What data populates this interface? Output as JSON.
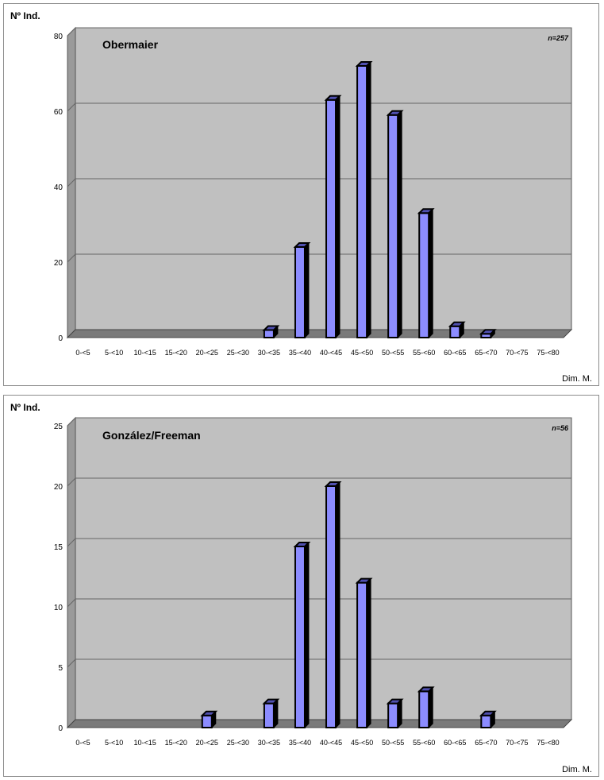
{
  "chart_data": [
    {
      "type": "bar",
      "title": "Obermaier",
      "sample_size": "n=257",
      "ylabel": "Nº Ind.",
      "xlabel": "Dim. M.",
      "ylim": [
        0,
        80
      ],
      "y_ticks": [
        "0",
        "20",
        "40",
        "60",
        "80"
      ],
      "y_tick_values": [
        0,
        20,
        40,
        60,
        80
      ],
      "categories": [
        "0-<5",
        "5-<10",
        "10-<15",
        "15-<20",
        "20-<25",
        "25-<30",
        "30-<35",
        "35-<40",
        "40-<45",
        "45-<50",
        "50-<55",
        "55-<60",
        "60-<65",
        "65-<70",
        "70-<75",
        "75-<80"
      ],
      "values": [
        0,
        0,
        0,
        0,
        0,
        0,
        2,
        24,
        63,
        72,
        59,
        33,
        3,
        1,
        0,
        0
      ],
      "bar_color": "#8c8cff",
      "plot_background": "#c0c0c0",
      "grid": true
    },
    {
      "type": "bar",
      "title": "González/Freeman",
      "sample_size": "n=56",
      "ylabel": "Nº Ind.",
      "xlabel": "Dim. M.",
      "ylim": [
        0,
        25
      ],
      "y_ticks": [
        "0",
        "5",
        "10",
        "15",
        "20",
        "25"
      ],
      "y_tick_values": [
        0,
        5,
        10,
        15,
        20,
        25
      ],
      "categories": [
        "0-<5",
        "5-<10",
        "10-<15",
        "15-<20",
        "20-<25",
        "25-<30",
        "30-<35",
        "35-<40",
        "40-<45",
        "45-<50",
        "50-<55",
        "55-<60",
        "60-<65",
        "65-<70",
        "70-<75",
        "75-<80"
      ],
      "values": [
        0,
        0,
        0,
        0,
        1,
        0,
        2,
        15,
        20,
        12,
        2,
        3,
        0,
        1,
        0,
        0
      ],
      "bar_color": "#8c8cff",
      "plot_background": "#c0c0c0",
      "grid": true
    }
  ]
}
